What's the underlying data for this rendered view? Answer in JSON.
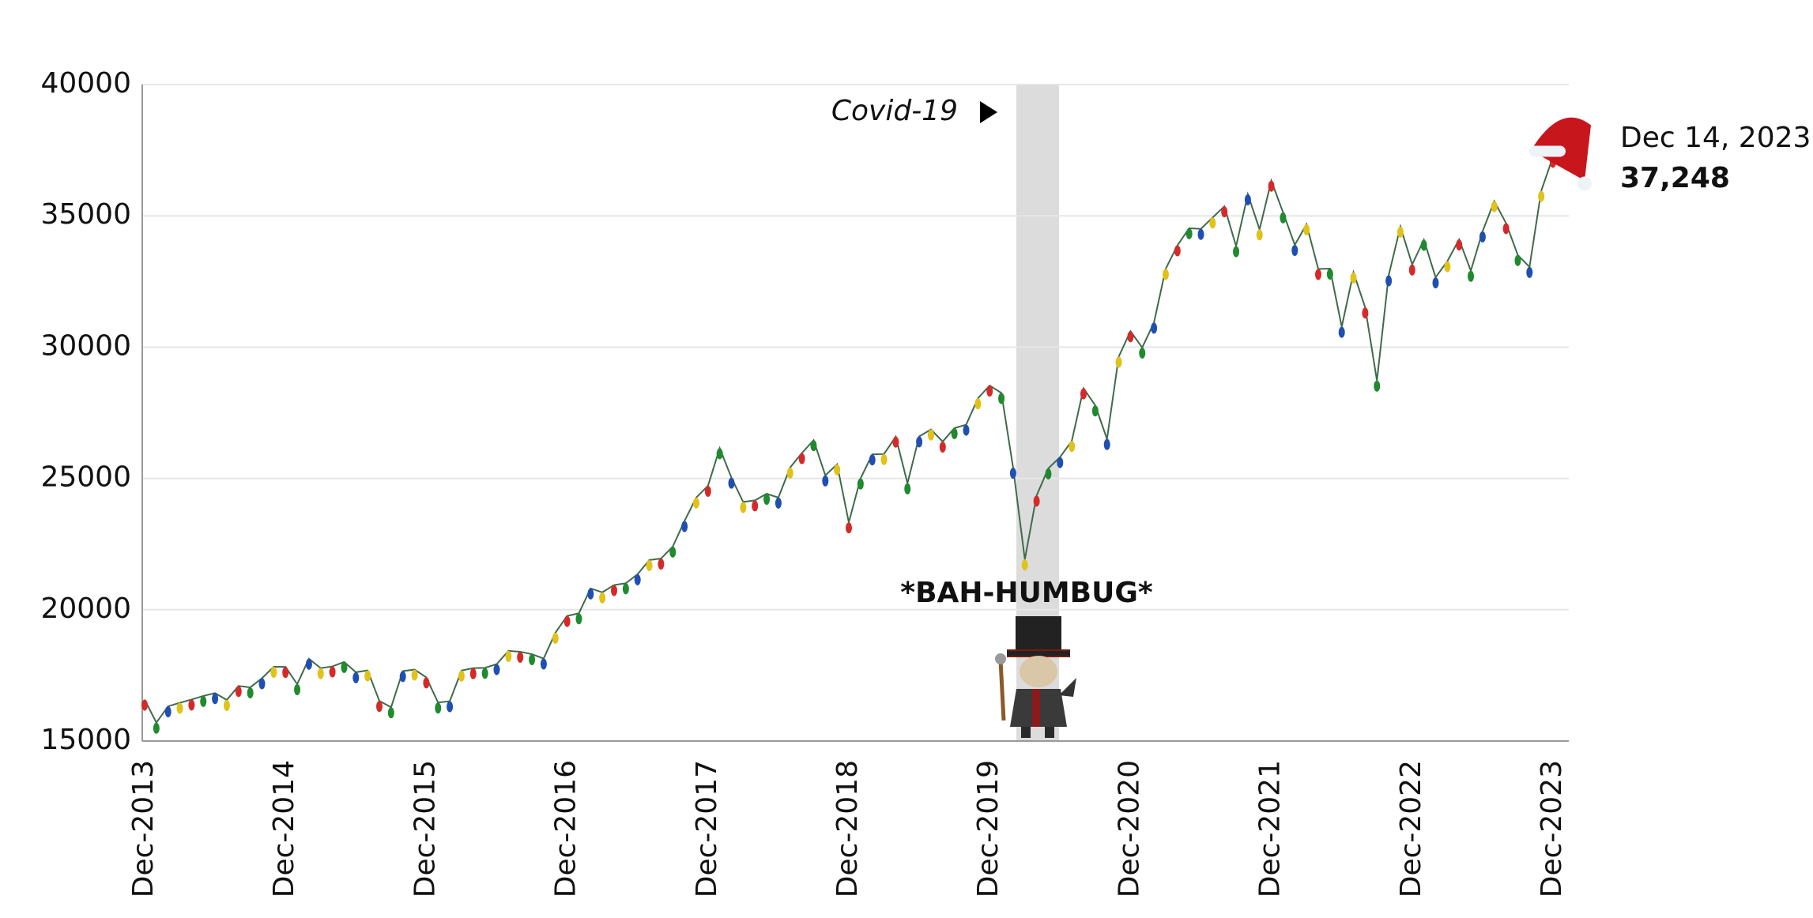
{
  "chart_data": {
    "type": "line",
    "categories": [
      "Dec-2013",
      null,
      null,
      null,
      null,
      null,
      null,
      null,
      null,
      null,
      null,
      null,
      "Dec-2014",
      null,
      null,
      null,
      null,
      null,
      null,
      null,
      null,
      null,
      null,
      null,
      "Dec-2015",
      null,
      null,
      null,
      null,
      null,
      null,
      null,
      null,
      null,
      null,
      null,
      "Dec-2016",
      null,
      null,
      null,
      null,
      null,
      null,
      null,
      null,
      null,
      null,
      null,
      "Dec-2017",
      null,
      null,
      null,
      null,
      null,
      null,
      null,
      null,
      null,
      null,
      null,
      "Dec-2018",
      null,
      null,
      null,
      null,
      null,
      null,
      null,
      null,
      null,
      null,
      null,
      "Dec-2019",
      null,
      null,
      null,
      null,
      null,
      null,
      null,
      null,
      null,
      null,
      null,
      "Dec-2020",
      null,
      null,
      null,
      null,
      null,
      null,
      null,
      null,
      null,
      null,
      null,
      "Dec-2021",
      null,
      null,
      null,
      null,
      null,
      null,
      null,
      null,
      null,
      null,
      null,
      "Dec-2022",
      null,
      null,
      null,
      null,
      null,
      null,
      null,
      null,
      null,
      null,
      null,
      "Dec-2023"
    ],
    "values": [
      16577,
      15699,
      16322,
      16458,
      16581,
      16717,
      16827,
      16563,
      17098,
      17043,
      17391,
      17828,
      17823,
      17165,
      18133,
      17776,
      17841,
      18011,
      17620,
      17690,
      16528,
      16285,
      17664,
      17720,
      17425,
      16466,
      16517,
      17685,
      17774,
      17787,
      17930,
      18432,
      18401,
      18308,
      18142,
      19124,
      19763,
      19864,
      20812,
      20663,
      20941,
      21009,
      21350,
      21891,
      21948,
      22405,
      23377,
      24272,
      24719,
      26149,
      25029,
      24103,
      24163,
      24416,
      24271,
      25415,
      25965,
      26458,
      25116,
      25538,
      23327,
      24999,
      25916,
      25929,
      26593,
      24815,
      26600,
      26864,
      26403,
      26917,
      27046,
      28051,
      28538,
      28256,
      25409,
      21917,
      24346,
      25383,
      25813,
      26428,
      28430,
      27782,
      26502,
      29639,
      30606,
      29983,
      30932,
      32982,
      33875,
      34529,
      34503,
      34935,
      35361,
      33844,
      35820,
      34484,
      36338,
      35132,
      33893,
      34678,
      32977,
      32990,
      30775,
      32845,
      31510,
      28726,
      32733,
      34590,
      33147,
      34086,
      32657,
      33274,
      34098,
      32908,
      34408,
      35560,
      34722,
      33508,
      33053,
      35951,
      37248
    ],
    "color": "#3f6b4a",
    "ylim": [
      15000,
      40000
    ],
    "yticks": [
      15000,
      20000,
      25000,
      30000,
      35000,
      40000
    ],
    "grid": true,
    "shaded_label": "Covid-19",
    "annotation": "*BAH-HUMBUG*",
    "last_label": {
      "date": "Dec 14, 2023",
      "value_label": "37,248",
      "color": "#1a8a1a"
    }
  }
}
